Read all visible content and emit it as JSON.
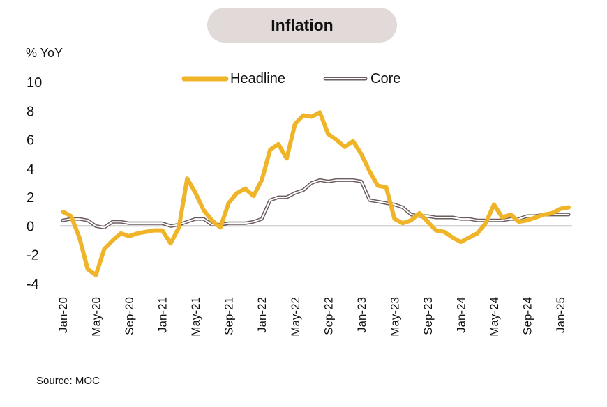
{
  "title": "Inflation",
  "unit_label": "% YoY",
  "source": "Source: MOC",
  "colors": {
    "headline": "#f0b428",
    "core_outline": "#6b5c5e",
    "core_fill": "#ffffff",
    "zero_line": "#8a8a8a",
    "title_bg": "#e2dad9"
  },
  "chart_data": {
    "type": "line",
    "title": "Inflation",
    "ylabel": "% YoY",
    "xlabel": "",
    "ylim": [
      -4,
      10
    ],
    "yticks": [
      10,
      8,
      6,
      4,
      2,
      0,
      -2,
      -4
    ],
    "x_tick_labels": [
      "Jan-20",
      "May-20",
      "Sep-20",
      "Jan-21",
      "May-21",
      "Sep-21",
      "Jan-22",
      "May-22",
      "Sep-22",
      "Jan-23",
      "May-23",
      "Sep-23",
      "Jan-24",
      "May-24",
      "Sep-24",
      "Jan-25"
    ],
    "x_tick_every": 4,
    "legend_position": "top",
    "grid": false,
    "series": [
      {
        "name": "Headline",
        "values": [
          1.0,
          0.7,
          -0.8,
          -3.0,
          -3.4,
          -1.6,
          -1.0,
          -0.5,
          -0.7,
          -0.5,
          -0.4,
          -0.3,
          -0.3,
          -1.2,
          -0.1,
          3.3,
          2.3,
          1.1,
          0.4,
          -0.1,
          1.6,
          2.3,
          2.6,
          2.1,
          3.2,
          5.3,
          5.7,
          4.7,
          7.1,
          7.7,
          7.6,
          7.9,
          6.4,
          6.0,
          5.5,
          5.9,
          5.0,
          3.8,
          2.8,
          2.7,
          0.5,
          0.2,
          0.4,
          0.9,
          0.3,
          -0.3,
          -0.4,
          -0.8,
          -1.1,
          -0.8,
          -0.5,
          0.2,
          1.5,
          0.6,
          0.8,
          0.3,
          0.4,
          0.6,
          0.8,
          0.9,
          1.2,
          1.3
        ]
      },
      {
        "name": "Core",
        "values": [
          0.4,
          0.5,
          0.5,
          0.4,
          0.0,
          -0.1,
          0.3,
          0.3,
          0.2,
          0.2,
          0.2,
          0.2,
          0.2,
          0.0,
          0.1,
          0.3,
          0.5,
          0.5,
          0.1,
          0.1,
          0.2,
          0.2,
          0.2,
          0.3,
          0.5,
          1.8,
          2.0,
          2.0,
          2.3,
          2.5,
          3.0,
          3.2,
          3.1,
          3.2,
          3.2,
          3.2,
          3.1,
          1.8,
          1.7,
          1.6,
          1.5,
          1.3,
          0.8,
          0.7,
          0.7,
          0.6,
          0.6,
          0.6,
          0.5,
          0.5,
          0.4,
          0.4,
          0.4,
          0.4,
          0.5,
          0.5,
          0.7,
          0.7,
          0.8,
          0.8,
          0.8,
          0.8
        ]
      }
    ]
  }
}
